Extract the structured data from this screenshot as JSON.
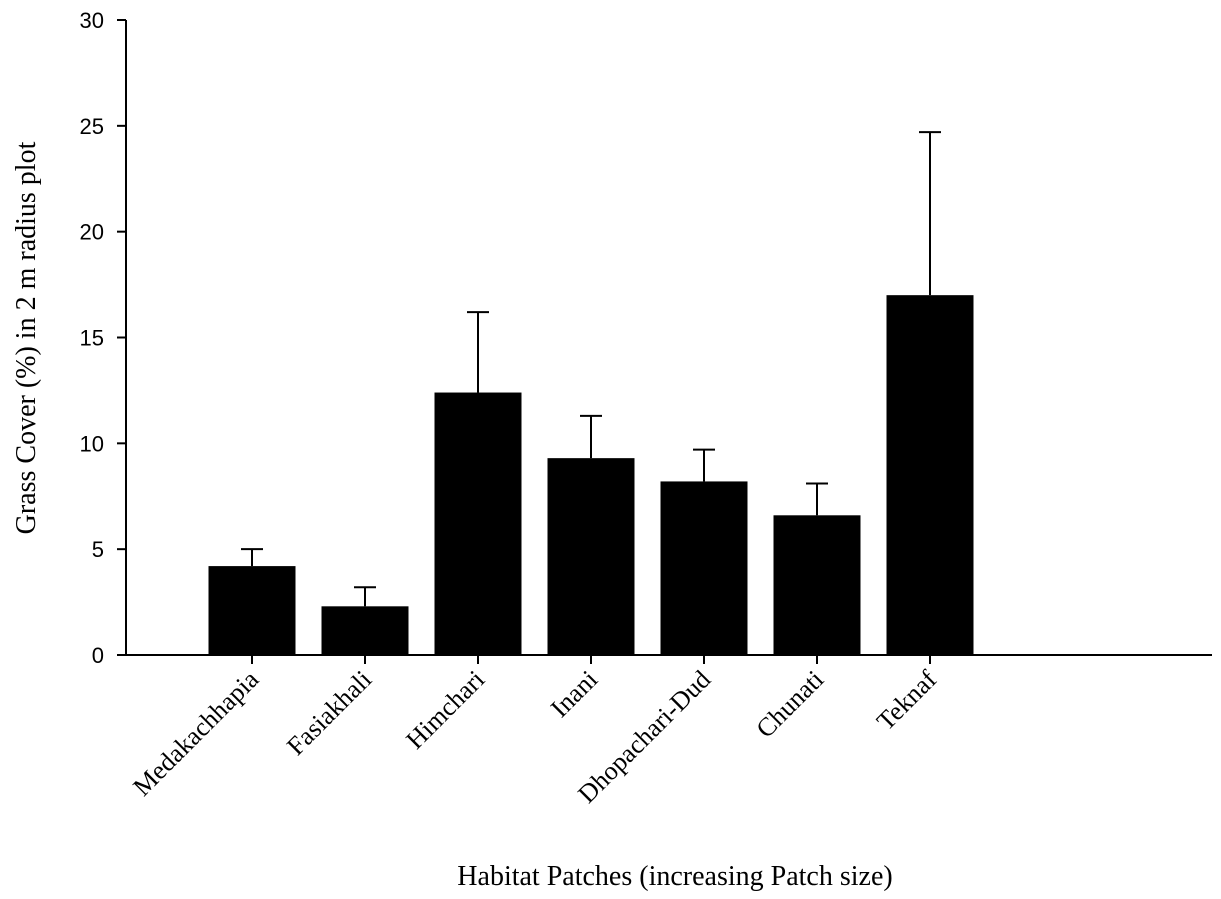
{
  "chart_data": {
    "type": "bar",
    "title": "",
    "xlabel": "Habitat Patches (increasing Patch size)",
    "ylabel": "Grass Cover (%) in 2 m radius plot",
    "categories": [
      "Medakachhapia",
      "Fasiakhali",
      "Himchari",
      "Inani",
      "Dhopachari-Dud",
      "Chunati",
      "Teknaf"
    ],
    "values": [
      4.2,
      2.3,
      12.4,
      9.3,
      8.2,
      6.6,
      17.0
    ],
    "error_upper": [
      5.0,
      3.2,
      16.2,
      11.3,
      9.7,
      8.1,
      24.7
    ],
    "ylim": [
      0,
      30
    ],
    "yticks": [
      0,
      5,
      10,
      15,
      20,
      25,
      30
    ],
    "grid": false,
    "legend": "none",
    "bar_color": "#000000"
  }
}
